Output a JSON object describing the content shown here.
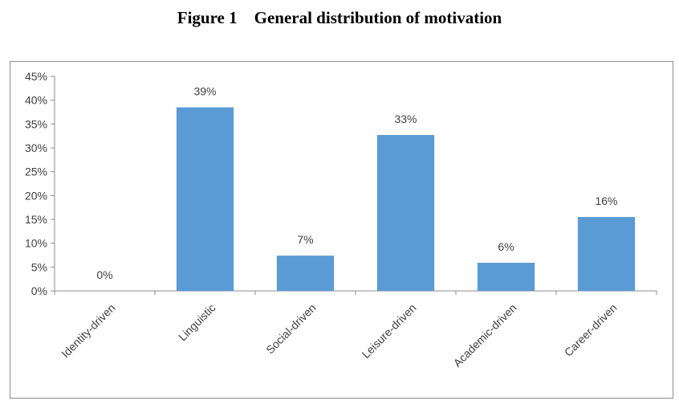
{
  "title_number": "Figure 1",
  "title_text": "General distribution of motivation",
  "chart_data": {
    "type": "bar",
    "categories": [
      "Identity-driven",
      "Linguistic",
      "Social-driven",
      "Leisure-driven",
      "Academic-driven",
      "Career-driven"
    ],
    "values": [
      0,
      38.5,
      7.4,
      32.7,
      5.9,
      15.5
    ],
    "data_labels": [
      "0%",
      "39%",
      "7%",
      "33%",
      "6%",
      "16%"
    ],
    "ylim": [
      0,
      45
    ],
    "yticks": [
      "0%",
      "5%",
      "10%",
      "15%",
      "20%",
      "25%",
      "30%",
      "35%",
      "40%",
      "45%"
    ],
    "grid": false,
    "legend": "none",
    "bar_color": "#5b9bd5"
  }
}
